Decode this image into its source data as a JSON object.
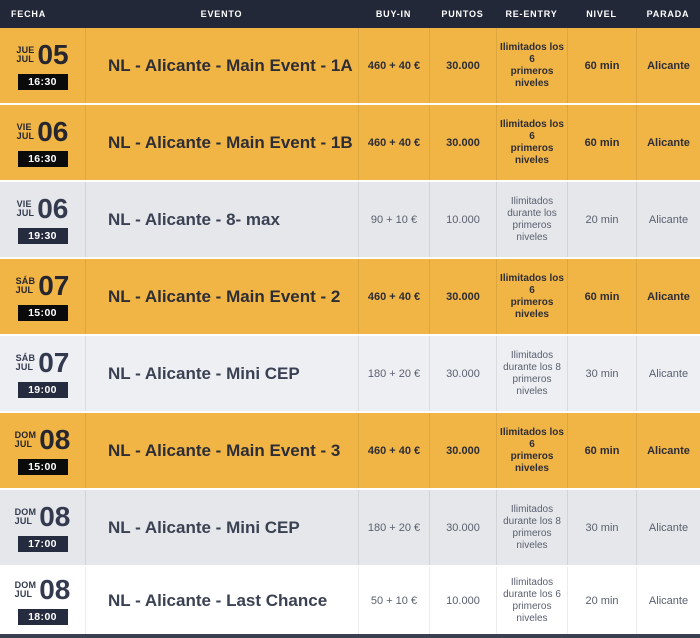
{
  "colors": {
    "accent_orange": "#f1b545",
    "header_bg": "#232838",
    "badge_black": "#0b0b0c",
    "badge_navy": "#262c3f",
    "row_gray": "#e5e7ea",
    "row_lightgray": "#edeff2",
    "bottom_strip": "#3a3f52"
  },
  "header": {
    "columns": [
      {
        "key": "fecha",
        "label": "FECHA"
      },
      {
        "key": "evento",
        "label": "EVENTO"
      },
      {
        "key": "buyin",
        "label": "BUY-IN"
      },
      {
        "key": "puntos",
        "label": "PUNTOS"
      },
      {
        "key": "reentry",
        "label": "RE-ENTRY"
      },
      {
        "key": "nivel",
        "label": "NIVEL"
      },
      {
        "key": "parada",
        "label": "PARADA"
      }
    ]
  },
  "rows": [
    {
      "theme": "orange",
      "day_name": "JUE",
      "month": "JUL",
      "day": "05",
      "time": "16:30",
      "event": "NL - Alicante - Main Event - 1A",
      "buyin": "460 + 40 €",
      "puntos": "30.000",
      "reentry": "Ilimitados los 6\nprimeros niveles",
      "nivel": "60 min",
      "parada": "Alicante"
    },
    {
      "theme": "orange",
      "day_name": "VIE",
      "month": "JUL",
      "day": "06",
      "time": "16:30",
      "event": "NL - Alicante - Main Event - 1B",
      "buyin": "460 + 40 €",
      "puntos": "30.000",
      "reentry": "Ilimitados los 6\nprimeros niveles",
      "nivel": "60 min",
      "parada": "Alicante"
    },
    {
      "theme": "gray",
      "day_name": "VIE",
      "month": "JUL",
      "day": "06",
      "time": "19:30",
      "event": "NL - Alicante - 8- max",
      "buyin": "90 + 10 €",
      "puntos": "10.000",
      "reentry": "Ilimitados\ndurante los\nprimeros niveles",
      "nivel": "20 min",
      "parada": "Alicante"
    },
    {
      "theme": "orange",
      "day_name": "SÁB",
      "month": "JUL",
      "day": "07",
      "time": "15:00",
      "event": "NL - Alicante - Main Event - 2",
      "buyin": "460 + 40 €",
      "puntos": "30.000",
      "reentry": "Ilimitados los 6\nprimeros niveles",
      "nivel": "60 min",
      "parada": "Alicante"
    },
    {
      "theme": "lightgray",
      "day_name": "SÁB",
      "month": "JUL",
      "day": "07",
      "time": "19:00",
      "event": "NL - Alicante - Mini CEP",
      "buyin": "180 + 20 €",
      "puntos": "30.000",
      "reentry": "Ilimitados\ndurante los 8\nprimeros niveles",
      "nivel": "30 min",
      "parada": "Alicante"
    },
    {
      "theme": "orange",
      "day_name": "DOM",
      "month": "JUL",
      "day": "08",
      "time": "15:00",
      "event": "NL - Alicante - Main Event - 3",
      "buyin": "460 + 40 €",
      "puntos": "30.000",
      "reentry": "Ilimitados los 6\nprimeros niveles",
      "nivel": "60 min",
      "parada": "Alicante"
    },
    {
      "theme": "gray",
      "day_name": "DOM",
      "month": "JUL",
      "day": "08",
      "time": "17:00",
      "event": "NL - Alicante - Mini CEP",
      "buyin": "180 + 20 €",
      "puntos": "30.000",
      "reentry": "Ilimitados\ndurante los 8\nprimeros niveles",
      "nivel": "30 min",
      "parada": "Alicante"
    },
    {
      "theme": "white",
      "day_name": "DOM",
      "month": "JUL",
      "day": "08",
      "time": "18:00",
      "event": "NL - Alicante - Last Chance",
      "buyin": "50 + 10 €",
      "puntos": "10.000",
      "reentry": "Ilimitados\ndurante los 6\nprimeros niveles",
      "nivel": "20 min",
      "parada": "Alicante"
    }
  ]
}
